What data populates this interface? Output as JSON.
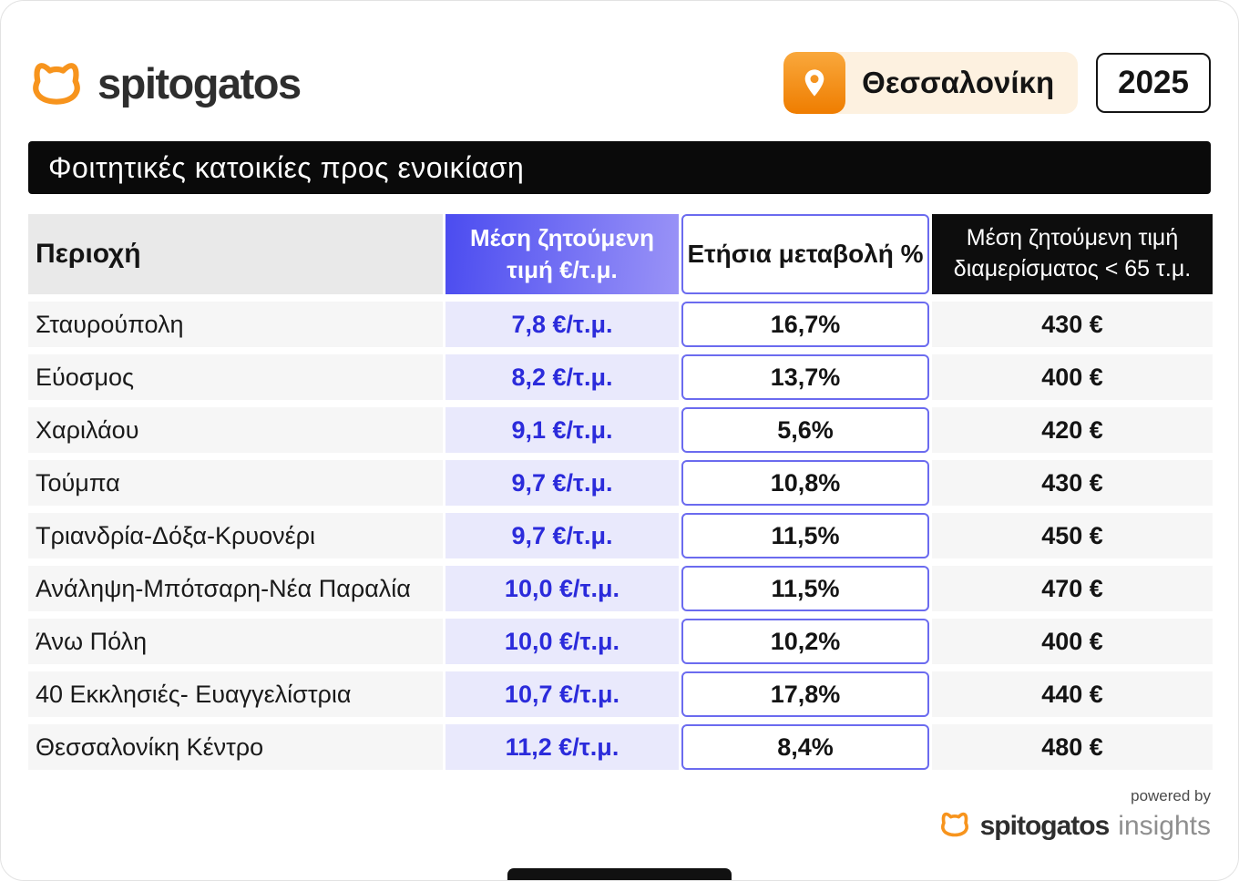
{
  "brand": {
    "name": "spitogatos"
  },
  "header": {
    "location": "Θεσσαλονίκη",
    "year": "2025"
  },
  "title": "Φοιτητικές κατοικίες προς ενοικίαση",
  "chart_data": {
    "type": "table",
    "title": "Φοιτητικές κατοικίες προς ενοικίαση",
    "location": "Θεσσαλονίκη",
    "year": "2025",
    "columns": [
      "Περιοχή",
      "Μέση ζητούμενη\nτιμή €/τ.μ.",
      "Ετήσια μεταβολή %",
      "Μέση ζητούμενη τιμή\nδιαμερίσματος < 65 τ.μ."
    ],
    "rows": [
      {
        "area": "Σταυρούπολη",
        "price": "7,8 €/τ.μ.",
        "change": "16,7%",
        "apartment_price": "430 €"
      },
      {
        "area": "Εύοσμος",
        "price": "8,2 €/τ.μ.",
        "change": "13,7%",
        "apartment_price": "400 €"
      },
      {
        "area": "Χαριλάου",
        "price": "9,1 €/τ.μ.",
        "change": "5,6%",
        "apartment_price": "420 €"
      },
      {
        "area": "Τούμπα",
        "price": "9,7 €/τ.μ.",
        "change": "10,8%",
        "apartment_price": "430 €"
      },
      {
        "area": "Τριανδρία-Δόξα-Κρυονέρι",
        "price": "9,7 €/τ.μ.",
        "change": "11,5%",
        "apartment_price": "450 €"
      },
      {
        "area": "Ανάληψη-Μπότσαρη-Νέα Παραλία",
        "price": "10,0 €/τ.μ.",
        "change": "11,5%",
        "apartment_price": "470 €"
      },
      {
        "area": "Άνω Πόλη",
        "price": "10,0 €/τ.μ.",
        "change": "10,2%",
        "apartment_price": "400 €"
      },
      {
        "area": "40 Εκκλησιές- Ευαγγελίστρια",
        "price": "10,7 €/τ.μ.",
        "change": "17,8%",
        "apartment_price": "440 €"
      },
      {
        "area": "Θεσσαλονίκη Κέντρο",
        "price": "11,2 €/τ.μ.",
        "change": "8,4%",
        "apartment_price": "480 €"
      }
    ]
  },
  "footer": {
    "powered_by": "powered by",
    "brand": "spitogatos",
    "insights": "insights"
  },
  "colors": {
    "orange": "#F7941D",
    "accent_blue": "#2B2BDB",
    "header_gradient_start": "#4B4CF0",
    "header_gradient_end": "#9A93F7",
    "box_border": "#6B6BEF",
    "banner_black": "#0D0D0D",
    "location_badge_bg": "#FDF1E0"
  }
}
